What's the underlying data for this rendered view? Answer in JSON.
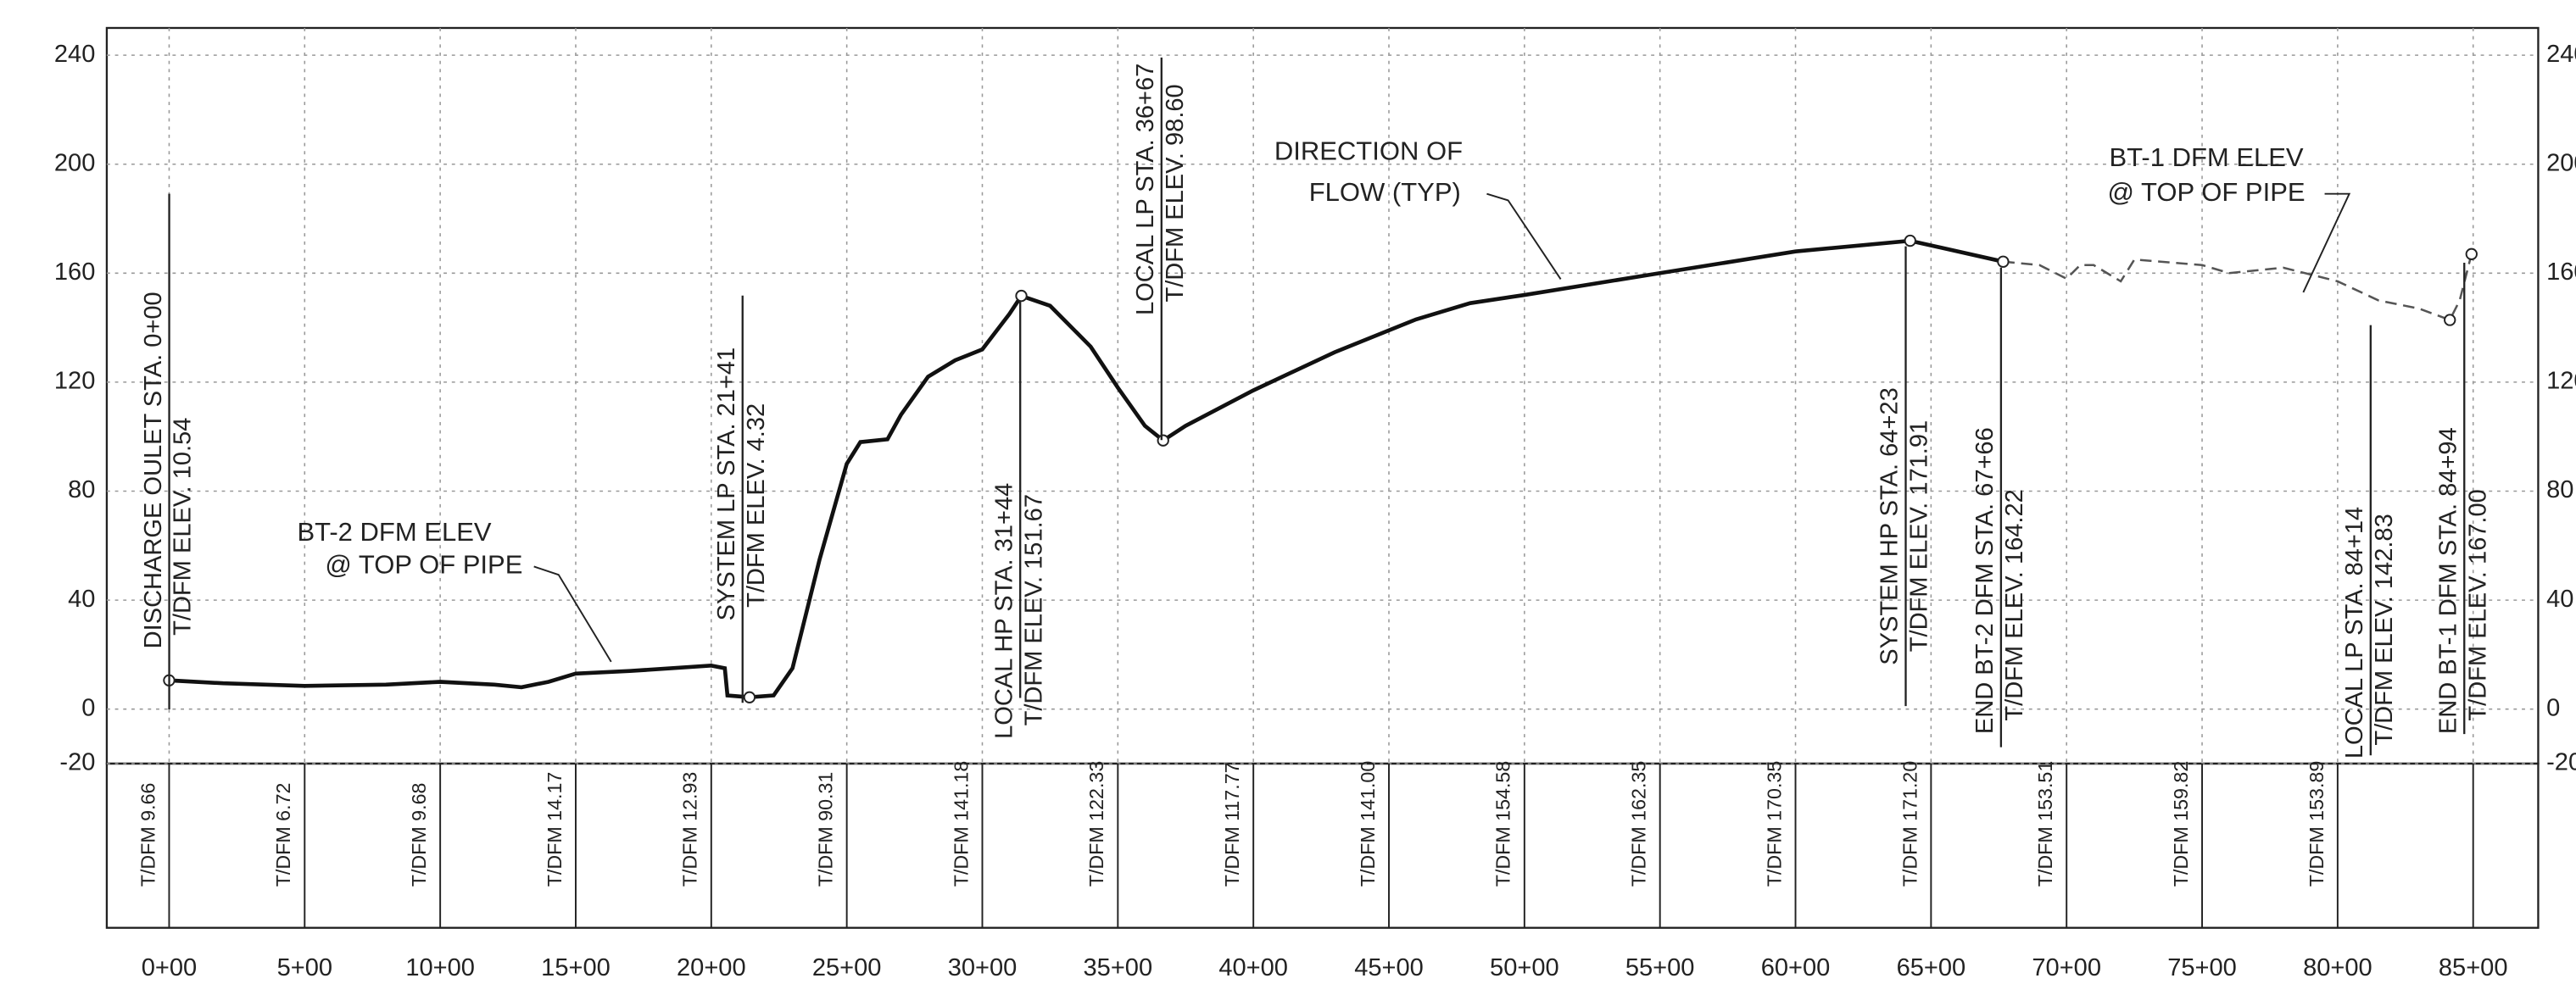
{
  "chart_data": {
    "type": "line",
    "xlim": [
      -2.3,
      87.4
    ],
    "ylim": [
      -20,
      250
    ],
    "yticks": [
      240,
      200,
      160,
      120,
      80,
      40,
      0,
      -20
    ],
    "xticks": [
      {
        "value": 0,
        "label": "0+00"
      },
      {
        "value": 5,
        "label": "5+00"
      },
      {
        "value": 10,
        "label": "10+00"
      },
      {
        "value": 15,
        "label": "15+00"
      },
      {
        "value": 20,
        "label": "20+00"
      },
      {
        "value": 25,
        "label": "25+00"
      },
      {
        "value": 30,
        "label": "30+00"
      },
      {
        "value": 35,
        "label": "35+00"
      },
      {
        "value": 40,
        "label": "40+00"
      },
      {
        "value": 45,
        "label": "45+00"
      },
      {
        "value": 50,
        "label": "50+00"
      },
      {
        "value": 55,
        "label": "55+00"
      },
      {
        "value": 60,
        "label": "60+00"
      },
      {
        "value": 65,
        "label": "65+00"
      },
      {
        "value": 70,
        "label": "70+00"
      },
      {
        "value": 75,
        "label": "75+00"
      },
      {
        "value": 80,
        "label": "80+00"
      },
      {
        "value": 85,
        "label": "85+00"
      }
    ],
    "grid": true,
    "series": [
      {
        "color": "#111",
        "dashed": false,
        "x": [
          0,
          2,
          5,
          8,
          10,
          12,
          13,
          14,
          15,
          17,
          20,
          20.5,
          20.6,
          21.41,
          22.3,
          23,
          24,
          25,
          25.5,
          26.5,
          27,
          28,
          29,
          30,
          31,
          31.44,
          32.5,
          34,
          35,
          36,
          36.67,
          37.5,
          40,
          43,
          46,
          48,
          50,
          55,
          60,
          64.23,
          67.66
        ],
        "values": [
          10.54,
          9.5,
          8.5,
          9,
          10,
          9,
          8,
          10,
          13,
          14,
          16,
          15,
          5,
          4.32,
          5,
          15,
          55,
          90,
          98,
          99,
          108,
          122,
          128,
          132,
          145,
          151.67,
          148,
          133,
          118,
          104,
          98.6,
          104,
          117,
          131,
          143,
          149,
          152,
          160,
          168,
          171.91,
          164.22
        ]
      },
      {
        "color": "#555",
        "dashed": true,
        "x": [
          67.66,
          69,
          70,
          70.5,
          71,
          72,
          72.5,
          75,
          76,
          78,
          80,
          81.5,
          83,
          84.14,
          84.5,
          84.94
        ],
        "values": [
          164.22,
          163,
          158,
          163,
          163,
          157,
          165,
          163,
          160,
          162,
          157,
          150,
          147,
          142.83,
          150,
          167.0
        ]
      }
    ],
    "markers": {
      "x": [
        0,
        21.41,
        31.44,
        36.67,
        64.23,
        67.66,
        84.14,
        84.94
      ],
      "values": [
        10.54,
        4.32,
        151.67,
        98.6,
        171.91,
        164.22,
        142.83,
        167.0
      ]
    },
    "annotations": [
      [
        "DISCHARGE OULET STA. 0+00",
        "T/DFM ELEV. 10.54"
      ],
      [
        "SYSTEM LP STA. 21+41",
        "T/DFM ELEV. 4.32"
      ],
      [
        "LOCAL HP STA. 31+44",
        "T/DFM ELEV. 151.67"
      ],
      [
        "LOCAL LP STA. 36+67",
        "T/DFM ELEV. 98.60"
      ],
      [
        "SYSTEM HP STA. 64+23",
        "T/DFM ELEV. 171.91"
      ],
      [
        "END BT-2 DFM STA. 67+66",
        "T/DFM ELEV. 164.22"
      ],
      [
        "LOCAL LP STA. 84+14",
        "T/DFM ELEV. 142.83"
      ],
      [
        "END BT-1 DFM STA. 84+94",
        "T/DFM ELEV. 167.00"
      ]
    ],
    "callouts": [
      [
        "BT-2 DFM ELEV",
        "@ TOP OF PIPE"
      ],
      [
        "DIRECTION OF",
        "FLOW (TYP)"
      ],
      [
        "BT-1 DFM ELEV",
        "@ TOP OF PIPE"
      ]
    ],
    "station_labels": [
      "T/DFM 9.66",
      "T/DFM 6.72",
      "T/DFM 9.68",
      "T/DFM 14.17",
      "T/DFM 12.93",
      "T/DFM 90.31",
      "T/DFM 141.18",
      "T/DFM 122.33",
      "T/DFM 117.77",
      "T/DFM 141.00",
      "T/DFM 154.58",
      "T/DFM 162.35",
      "T/DFM 170.35",
      "T/DFM 171.20",
      "T/DFM 153.51",
      "T/DFM 159.82",
      "T/DFM 153.89"
    ]
  }
}
